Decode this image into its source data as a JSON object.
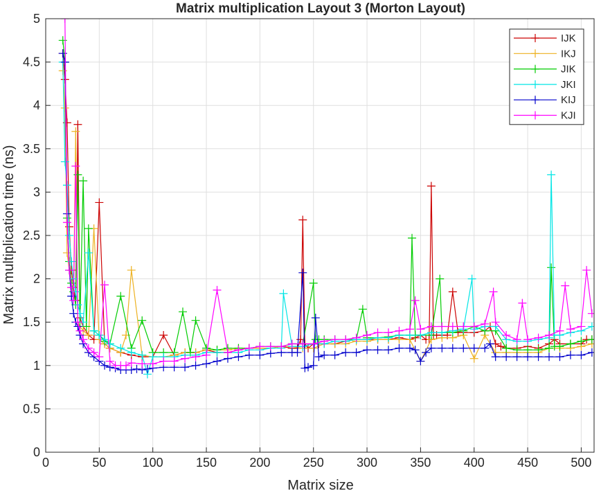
{
  "chart_data": {
    "type": "line",
    "title": "Matrix multiplication Layout 3 (Morton Layout)",
    "xlabel": "Matrix size",
    "ylabel": "Matrix multiplication time (ns)",
    "xlim": [
      0,
      512
    ],
    "ylim": [
      0,
      5
    ],
    "xticks": [
      0,
      50,
      100,
      150,
      200,
      250,
      300,
      350,
      400,
      450,
      500
    ],
    "yticks": [
      0,
      0.5,
      1,
      1.5,
      2,
      2.5,
      3,
      3.5,
      4,
      4.5,
      5
    ],
    "xtick_labels": [
      "0",
      "50",
      "100",
      "150",
      "200",
      "250",
      "300",
      "350",
      "400",
      "450",
      "500"
    ],
    "ytick_labels": [
      "0",
      "0.5",
      "1",
      "1.5",
      "2",
      "2.5",
      "3",
      "3.5",
      "4",
      "4.5",
      "5"
    ],
    "grid": true,
    "marker": "plus",
    "legend_position": "top-right",
    "series": [
      {
        "name": "IJK",
        "color": "#cc0000",
        "x": [
          16,
          18,
          20,
          22,
          24,
          26,
          28,
          30,
          32,
          35,
          40,
          45,
          50,
          55,
          60,
          70,
          80,
          90,
          100,
          110,
          120,
          130,
          140,
          150,
          160,
          170,
          180,
          190,
          200,
          210,
          220,
          230,
          235,
          238,
          240,
          242,
          245,
          250,
          255,
          260,
          270,
          280,
          290,
          300,
          310,
          320,
          330,
          340,
          345,
          350,
          355,
          358,
          360,
          362,
          365,
          370,
          375,
          380,
          385,
          390,
          400,
          410,
          415,
          420,
          425,
          430,
          440,
          450,
          460,
          470,
          475,
          480,
          490,
          500,
          505,
          510
        ],
        "y": [
          4.6,
          4.3,
          3.8,
          2.6,
          2.1,
          1.9,
          1.75,
          3.78,
          1.55,
          1.45,
          1.35,
          1.3,
          2.88,
          1.25,
          1.2,
          1.15,
          1.12,
          1.1,
          1.1,
          1.35,
          1.12,
          1.15,
          1.15,
          1.18,
          1.15,
          1.15,
          1.18,
          1.2,
          1.2,
          1.2,
          1.22,
          1.2,
          1.2,
          1.3,
          2.68,
          1.25,
          1.2,
          1.25,
          1.25,
          1.25,
          1.25,
          1.28,
          1.3,
          1.3,
          1.3,
          1.3,
          1.32,
          1.3,
          1.32,
          1.35,
          1.3,
          1.3,
          3.07,
          1.35,
          1.35,
          1.35,
          1.35,
          1.85,
          1.38,
          1.38,
          1.38,
          1.4,
          1.45,
          1.25,
          1.22,
          1.2,
          1.2,
          1.22,
          1.2,
          1.25,
          1.3,
          1.25,
          1.25,
          1.25,
          1.3,
          1.3
        ]
      },
      {
        "name": "IKJ",
        "color": "#edb120",
        "x": [
          16,
          18,
          20,
          22,
          24,
          26,
          28,
          30,
          32,
          35,
          40,
          45,
          50,
          55,
          60,
          70,
          75,
          80,
          90,
          100,
          110,
          120,
          130,
          140,
          150,
          160,
          170,
          180,
          190,
          200,
          210,
          220,
          230,
          240,
          250,
          260,
          270,
          280,
          290,
          300,
          310,
          320,
          330,
          340,
          350,
          360,
          370,
          380,
          390,
          400,
          410,
          420,
          430,
          440,
          450,
          460,
          470,
          480,
          490,
          500,
          510
        ],
        "y": [
          4.4,
          3.97,
          2.3,
          2.1,
          1.9,
          1.8,
          3.7,
          1.5,
          1.45,
          1.4,
          1.35,
          2.58,
          1.3,
          1.25,
          1.2,
          1.15,
          1.35,
          2.1,
          1.12,
          1.1,
          1.1,
          1.12,
          1.15,
          1.15,
          1.18,
          1.18,
          1.18,
          1.2,
          1.2,
          1.2,
          1.2,
          1.22,
          1.22,
          1.2,
          1.2,
          1.25,
          1.25,
          1.25,
          1.28,
          1.28,
          1.3,
          1.3,
          1.3,
          1.3,
          1.05,
          1.3,
          1.32,
          1.32,
          1.35,
          1.08,
          1.35,
          1.15,
          1.15,
          1.15,
          1.15,
          1.15,
          1.2,
          1.2,
          1.2,
          1.22,
          1.25
        ]
      },
      {
        "name": "JIK",
        "color": "#00cc00",
        "x": [
          16,
          18,
          20,
          22,
          24,
          26,
          28,
          30,
          32,
          35,
          38,
          40,
          45,
          50,
          55,
          60,
          70,
          80,
          90,
          100,
          110,
          120,
          128,
          135,
          140,
          150,
          160,
          170,
          180,
          190,
          200,
          210,
          220,
          230,
          240,
          250,
          252,
          255,
          260,
          270,
          280,
          290,
          296,
          300,
          310,
          320,
          330,
          340,
          342,
          345,
          350,
          360,
          368,
          370,
          380,
          390,
          400,
          410,
          420,
          430,
          440,
          450,
          460,
          470,
          472,
          475,
          480,
          490,
          500,
          510
        ],
        "y": [
          4.75,
          4.5,
          2.7,
          2.2,
          1.95,
          1.85,
          1.7,
          3.2,
          1.5,
          3.13,
          1.45,
          2.58,
          1.4,
          1.35,
          1.28,
          1.25,
          1.8,
          1.2,
          1.52,
          1.15,
          1.15,
          1.15,
          1.62,
          1.15,
          1.52,
          1.2,
          1.18,
          1.2,
          1.2,
          1.2,
          1.22,
          1.22,
          1.22,
          1.25,
          1.25,
          1.95,
          1.3,
          1.3,
          1.3,
          1.3,
          1.3,
          1.3,
          1.65,
          1.32,
          1.32,
          1.33,
          1.35,
          1.35,
          2.47,
          1.35,
          1.35,
          1.35,
          2.0,
          1.38,
          1.38,
          1.4,
          1.45,
          1.4,
          1.4,
          1.2,
          1.18,
          1.18,
          1.18,
          1.2,
          2.13,
          1.22,
          1.22,
          1.25,
          1.28,
          1.3
        ]
      },
      {
        "name": "JKI",
        "color": "#00e5e5",
        "x": [
          16,
          18,
          20,
          22,
          24,
          26,
          28,
          30,
          32,
          35,
          40,
          45,
          50,
          55,
          60,
          70,
          80,
          90,
          95,
          100,
          110,
          120,
          130,
          140,
          150,
          160,
          170,
          180,
          190,
          200,
          210,
          220,
          222,
          230,
          240,
          250,
          260,
          270,
          280,
          290,
          300,
          310,
          320,
          330,
          340,
          350,
          360,
          370,
          380,
          390,
          398,
          400,
          410,
          420,
          430,
          440,
          450,
          460,
          470,
          472,
          475,
          480,
          490,
          500,
          510
        ],
        "y": [
          4.5,
          3.35,
          3.08,
          2.5,
          2.2,
          2.0,
          1.85,
          1.7,
          1.6,
          1.5,
          2.3,
          1.4,
          1.35,
          1.3,
          1.25,
          1.2,
          1.15,
          1.12,
          0.9,
          1.1,
          1.1,
          1.1,
          1.12,
          1.12,
          1.15,
          1.15,
          1.15,
          1.15,
          1.18,
          1.18,
          1.2,
          1.2,
          1.83,
          1.22,
          1.22,
          1.25,
          1.25,
          1.28,
          1.28,
          1.3,
          1.3,
          1.32,
          1.32,
          1.35,
          1.35,
          1.35,
          1.38,
          1.38,
          1.4,
          1.42,
          2.0,
          1.42,
          1.45,
          1.45,
          1.3,
          1.28,
          1.28,
          1.3,
          1.32,
          3.2,
          1.35,
          1.35,
          1.38,
          1.4,
          1.45
        ]
      },
      {
        "name": "KIJ",
        "color": "#0000cc",
        "x": [
          16,
          18,
          20,
          22,
          24,
          26,
          28,
          30,
          32,
          35,
          40,
          45,
          50,
          55,
          60,
          65,
          70,
          75,
          80,
          85,
          90,
          95,
          100,
          110,
          120,
          130,
          140,
          150,
          160,
          170,
          180,
          190,
          200,
          210,
          220,
          230,
          235,
          240,
          242,
          245,
          250,
          252,
          255,
          260,
          270,
          280,
          290,
          300,
          310,
          320,
          330,
          340,
          345,
          350,
          355,
          360,
          370,
          380,
          390,
          400,
          410,
          415,
          420,
          430,
          440,
          450,
          460,
          470,
          480,
          490,
          500,
          510
        ],
        "y": [
          4.6,
          4.5,
          2.75,
          2.1,
          1.8,
          1.6,
          1.5,
          1.45,
          1.35,
          1.25,
          1.15,
          1.1,
          1.05,
          1.0,
          0.98,
          0.97,
          0.95,
          0.95,
          0.95,
          0.96,
          0.95,
          0.96,
          0.97,
          0.98,
          0.98,
          0.98,
          1.0,
          1.02,
          1.05,
          1.08,
          1.1,
          1.12,
          1.12,
          1.14,
          1.15,
          1.15,
          1.15,
          2.07,
          0.97,
          0.98,
          1.0,
          1.55,
          1.1,
          1.12,
          1.12,
          1.15,
          1.15,
          1.18,
          1.18,
          1.18,
          1.2,
          1.2,
          1.18,
          1.05,
          1.15,
          1.2,
          1.2,
          1.2,
          1.2,
          1.2,
          1.2,
          1.25,
          1.1,
          1.1,
          1.1,
          1.1,
          1.1,
          1.1,
          1.1,
          1.12,
          1.12,
          1.15
        ]
      },
      {
        "name": "KJI",
        "color": "#ff00ff",
        "x": [
          16,
          18,
          20,
          22,
          24,
          26,
          28,
          30,
          32,
          35,
          40,
          45,
          50,
          55,
          60,
          65,
          70,
          75,
          80,
          90,
          100,
          110,
          120,
          130,
          140,
          150,
          160,
          170,
          180,
          190,
          200,
          210,
          220,
          230,
          240,
          250,
          260,
          270,
          280,
          290,
          300,
          310,
          320,
          330,
          340,
          345,
          350,
          360,
          370,
          380,
          390,
          400,
          410,
          418,
          420,
          430,
          440,
          445,
          450,
          460,
          470,
          480,
          485,
          490,
          500,
          505,
          510
        ],
        "y": [
          5.2,
          5.0,
          2.65,
          2.1,
          1.9,
          1.75,
          3.3,
          1.5,
          1.4,
          1.3,
          1.2,
          1.15,
          1.1,
          1.93,
          1.05,
          1.0,
          1.0,
          1.0,
          1.03,
          1.02,
          1.02,
          1.05,
          1.05,
          1.08,
          1.1,
          1.12,
          1.87,
          1.15,
          1.18,
          1.2,
          1.22,
          1.22,
          1.22,
          1.25,
          1.25,
          1.25,
          1.28,
          1.3,
          1.3,
          1.32,
          1.35,
          1.38,
          1.38,
          1.4,
          1.42,
          1.75,
          1.42,
          1.45,
          1.45,
          1.45,
          1.45,
          1.45,
          1.48,
          1.85,
          1.5,
          1.35,
          1.3,
          1.72,
          1.3,
          1.32,
          1.35,
          1.4,
          1.92,
          1.42,
          1.45,
          2.1,
          1.6
        ]
      }
    ]
  }
}
